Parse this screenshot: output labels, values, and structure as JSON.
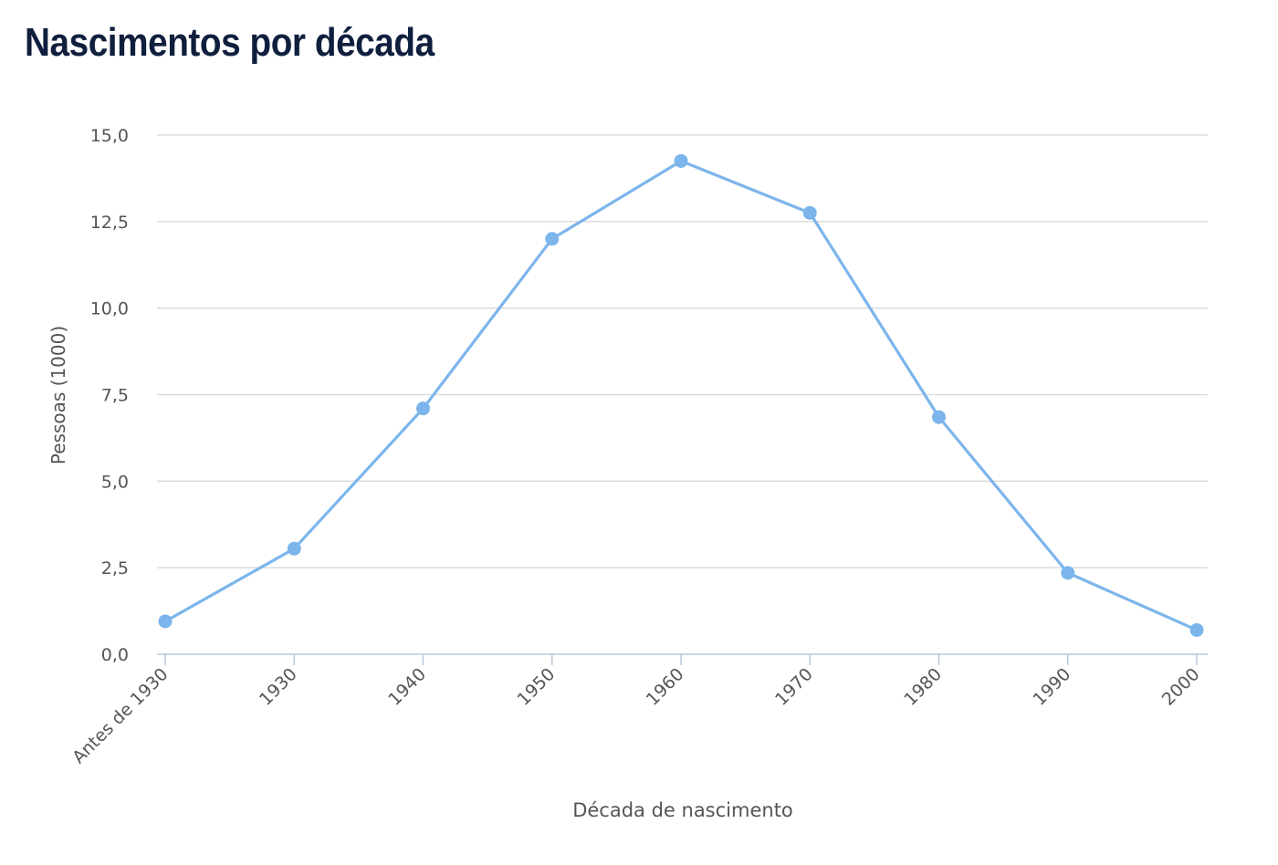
{
  "chart_data": {
    "type": "line",
    "title": "Nascimentos por década",
    "xlabel": "Década de nascimento",
    "ylabel": "Pessoas (1000)",
    "categories": [
      "Antes de 1930",
      "1930",
      "1940",
      "1950",
      "1960",
      "1970",
      "1980",
      "1990",
      "2000"
    ],
    "series": [
      {
        "values": [
          0.95,
          3.05,
          7.1,
          12.0,
          14.25,
          12.75,
          6.85,
          2.35,
          0.7
        ],
        "color": "#7cb5ec"
      }
    ],
    "ylim": [
      0,
      15
    ],
    "yticks": [
      "0,0",
      "2,5",
      "5,0",
      "7,5",
      "10,0",
      "12,5",
      "15,0"
    ],
    "grid": true,
    "legend": "none"
  }
}
